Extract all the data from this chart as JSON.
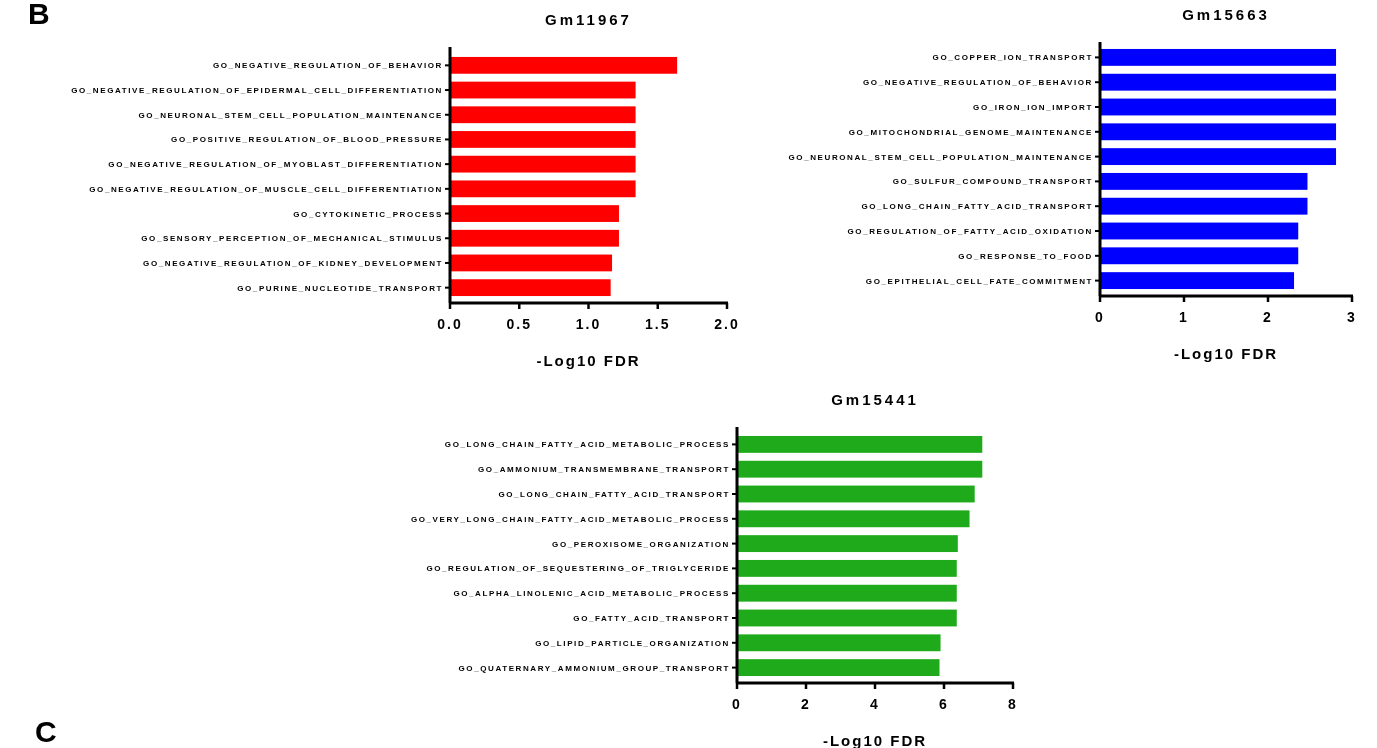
{
  "chart_data": [
    {
      "type": "bar",
      "orientation": "horizontal",
      "title": "Gm11967",
      "xlabel": "-Log10 FDR",
      "annotations": [
        "B"
      ],
      "categories": [
        "GO_NEGATIVE_REGULATION_OF_BEHAVIOR",
        "GO_NEGATIVE_REGULATION_OF_EPIDERMAL_CELL_DIFFERENTIATION",
        "GO_NEURONAL_STEM_CELL_POPULATION_MAINTENANCE",
        "GO_POSITIVE_REGULATION_OF_BLOOD_PRESSURE",
        "GO_NEGATIVE_REGULATION_OF_MYOBLAST_DIFFERENTIATION",
        "GO_NEGATIVE_REGULATION_OF_MUSCLE_CELL_DIFFERENTIATION",
        "GO_CYTOKINETIC_PROCESS",
        "GO_SENSORY_PERCEPTION_OF_MECHANICAL_STIMULUS",
        "GO_NEGATIVE_REGULATION_OF_KIDNEY_DEVELOPMENT",
        "GO_PURINE_NUCLEOTIDE_TRANSPORT"
      ],
      "values": [
        1.64,
        1.34,
        1.34,
        1.34,
        1.34,
        1.34,
        1.22,
        1.22,
        1.17,
        1.16
      ],
      "color": "#ff0000",
      "xlim": [
        0,
        2
      ],
      "xticks": [
        {
          "value": 0,
          "label": "0.0"
        },
        {
          "value": 0.5,
          "label": "0.5"
        },
        {
          "value": 1,
          "label": "1.0"
        },
        {
          "value": 1.5,
          "label": "1.5"
        },
        {
          "value": 2,
          "label": "2.0"
        }
      ],
      "grid": false
    },
    {
      "type": "bar",
      "orientation": "horizontal",
      "title": "Gm15663",
      "xlabel": "-Log10 FDR",
      "categories": [
        "GO_COPPER_ION_TRANSPORT",
        "GO_NEGATIVE_REGULATION_OF_BEHAVIOR",
        "GO_IRON_ION_IMPORT",
        "GO_MITOCHONDRIAL_GENOME_MAINTENANCE",
        "GO_NEURONAL_STEM_CELL_POPULATION_MAINTENANCE",
        "GO_SULFUR_COMPOUND_TRANSPORT",
        "GO_LONG_CHAIN_FATTY_ACID_TRANSPORT",
        "GO_REGULATION_OF_FATTY_ACID_OXIDATION",
        "GO_RESPONSE_TO_FOOD",
        "GO_EPITHELIAL_CELL_FATE_COMMITMENT"
      ],
      "values": [
        2.81,
        2.81,
        2.81,
        2.81,
        2.81,
        2.47,
        2.47,
        2.36,
        2.36,
        2.31
      ],
      "color": "#0000ff",
      "xlim": [
        0,
        3
      ],
      "xticks": [
        0,
        1,
        2,
        3
      ],
      "grid": false
    },
    {
      "type": "bar",
      "orientation": "horizontal",
      "title": "Gm15441",
      "xlabel": "-Log10 FDR",
      "annotations": [
        "C"
      ],
      "categories": [
        "GO_LONG_CHAIN_FATTY_ACID_METABOLIC_PROCESS",
        "GO_AMMONIUM_TRANSMEMBRANE_TRANSPORT",
        "GO_LONG_CHAIN_FATTY_ACID_TRANSPORT",
        "GO_VERY_LONG_CHAIN_FATTY_ACID_METABOLIC_PROCESS",
        "GO_PEROXISOME_ORGANIZATION",
        "GO_REGULATION_OF_SEQUESTERING_OF_TRIGLYCERIDE",
        "GO_ALPHA_LINOLENIC_ACID_METABOLIC_PROCESS",
        "GO_FATTY_ACID_TRANSPORT",
        "GO_LIPID_PARTICLE_ORGANIZATION",
        "GO_QUATERNARY_AMMONIUM_GROUP_TRANSPORT"
      ],
      "values": [
        7.11,
        7.11,
        6.89,
        6.74,
        6.4,
        6.37,
        6.37,
        6.37,
        5.9,
        5.87
      ],
      "color": "#1eaa1a",
      "xlim": [
        0,
        8
      ],
      "xticks": [
        0,
        2,
        4,
        6,
        8
      ],
      "grid": false
    }
  ]
}
